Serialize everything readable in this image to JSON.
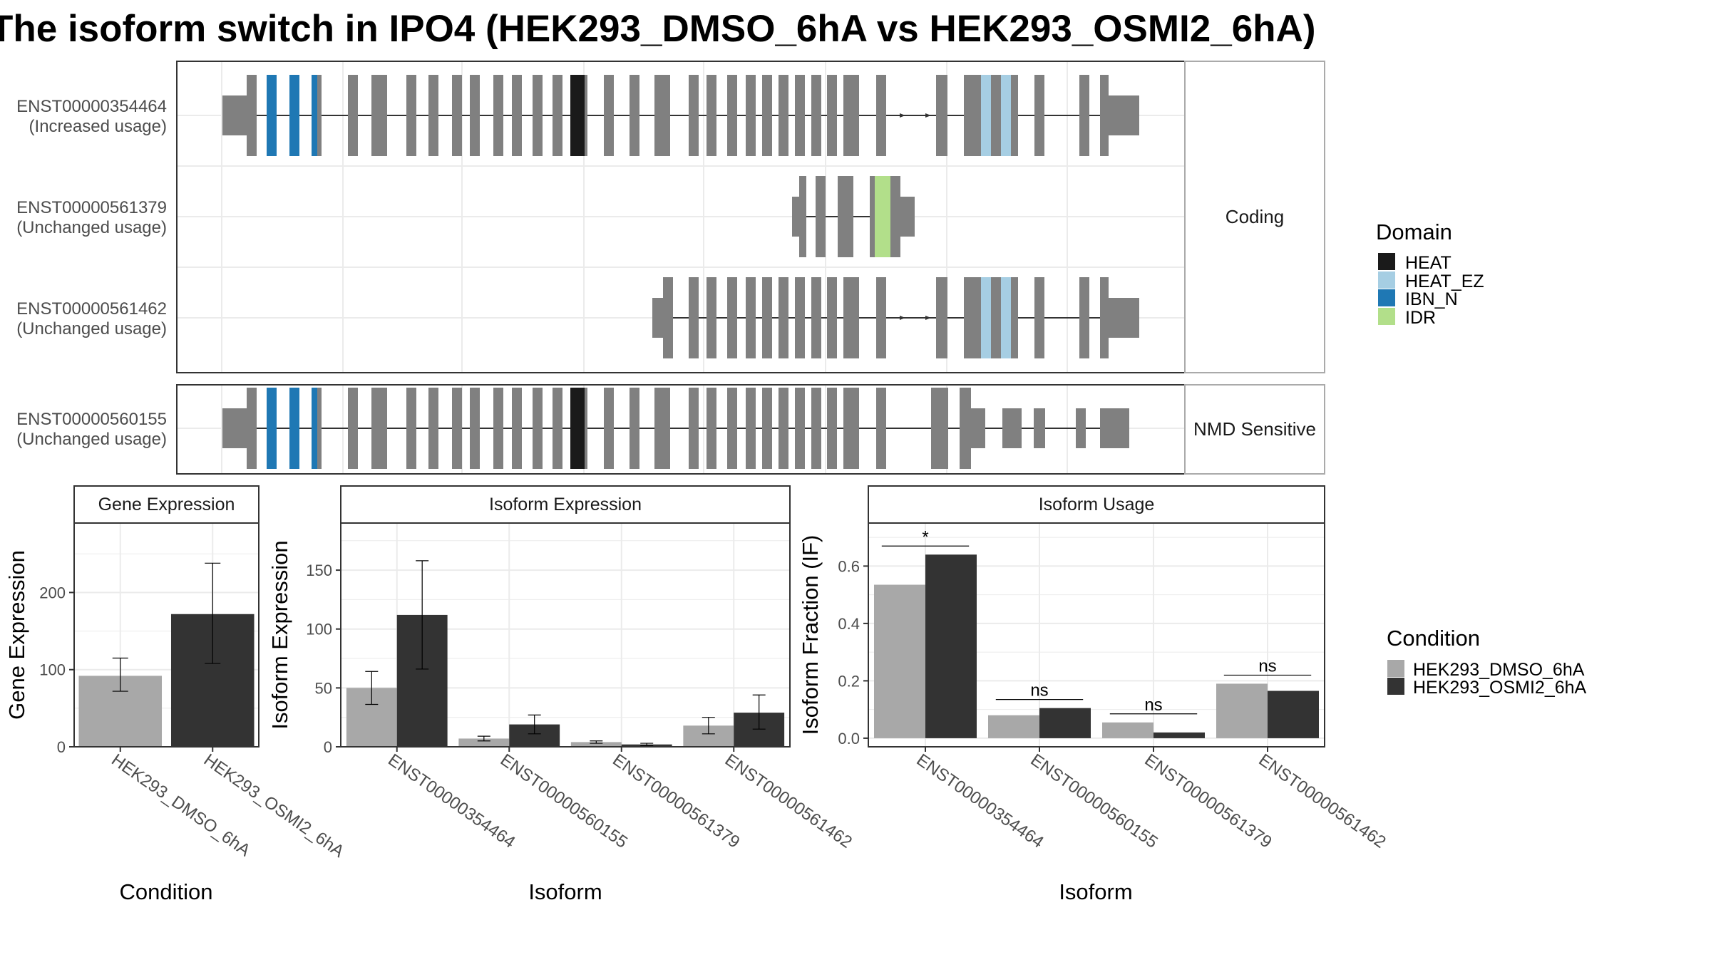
{
  "title": "The isoform switch in IPO4 (HEK293_DMSO_6hA vs HEK293_OSMI2_6hA)",
  "colors": {
    "exon": "#808080",
    "frame": "#333333",
    "strip_bg": "#ffffff",
    "strip_border": "#aaaaaa",
    "grid": "#ebebeb",
    "cond1": "#a8a8a8",
    "cond2": "#333333"
  },
  "structure": {
    "facets": [
      {
        "label": "Coding",
        "transcripts": [
          {
            "id": "ENST00000354464",
            "usage": "(Increased usage)"
          },
          {
            "id": "ENST00000561379",
            "usage": "(Unchanged usage)"
          },
          {
            "id": "ENST00000561462",
            "usage": "(Unchanged usage)"
          }
        ]
      },
      {
        "label": "NMD Sensitive",
        "transcripts": [
          {
            "id": "ENST00000560155",
            "usage": "(Unchanged usage)"
          }
        ]
      }
    ],
    "legend": {
      "title": "Domain",
      "items": [
        {
          "name": "HEAT",
          "color": "#1a1a1a"
        },
        {
          "name": "HEAT_EZ",
          "color": "#a6cee3"
        },
        {
          "name": "IBN_N",
          "color": "#1f78b4"
        },
        {
          "name": "IDR",
          "color": "#b2df8a"
        }
      ]
    }
  },
  "condition_legend": {
    "title": "Condition",
    "items": [
      {
        "name": "HEK293_DMSO_6hA",
        "color": "#a8a8a8"
      },
      {
        "name": "HEK293_OSMI2_6hA",
        "color": "#333333"
      }
    ]
  },
  "chart_data": [
    {
      "type": "bar",
      "title": "Gene Expression",
      "xlabel": "Condition",
      "ylabel": "Gene Expression",
      "categories": [
        "HEK293_DMSO_6hA",
        "HEK293_OSMI2_6hA"
      ],
      "values": [
        92,
        172
      ],
      "error_low": [
        72,
        108
      ],
      "error_high": [
        115,
        238
      ],
      "ylim": [
        0,
        290
      ],
      "yticks": [
        0,
        100,
        200
      ]
    },
    {
      "type": "bar",
      "title": "Isoform Expression",
      "xlabel": "Isoform",
      "ylabel": "Isoform Expression",
      "categories": [
        "ENST00000354464",
        "ENST00000560155",
        "ENST00000561379",
        "ENST00000561462"
      ],
      "series": [
        {
          "name": "HEK293_DMSO_6hA",
          "values": [
            50,
            7,
            4,
            18
          ],
          "error_low": [
            36,
            5,
            3,
            11
          ],
          "error_high": [
            64,
            9,
            5,
            25
          ]
        },
        {
          "name": "HEK293_OSMI2_6hA",
          "values": [
            112,
            19,
            2,
            29
          ],
          "error_low": [
            66,
            11,
            1,
            15
          ],
          "error_high": [
            158,
            27,
            3,
            44
          ]
        }
      ],
      "ylim": [
        0,
        190
      ],
      "yticks": [
        0,
        50,
        100,
        150
      ]
    },
    {
      "type": "bar",
      "title": "Isoform Usage",
      "xlabel": "Isoform",
      "ylabel": "Isoform Fraction (IF)",
      "categories": [
        "ENST00000354464",
        "ENST00000560155",
        "ENST00000561379",
        "ENST00000561462"
      ],
      "series": [
        {
          "name": "HEK293_DMSO_6hA",
          "values": [
            0.535,
            0.08,
            0.055,
            0.19
          ]
        },
        {
          "name": "HEK293_OSMI2_6hA",
          "values": [
            0.64,
            0.105,
            0.02,
            0.165
          ]
        }
      ],
      "significance": [
        "*",
        "ns",
        "ns",
        "ns"
      ],
      "ylim": [
        -0.03,
        0.75
      ],
      "yticks": [
        0.0,
        0.2,
        0.4,
        0.6
      ],
      "ytick_labels": [
        "0.0",
        "0.2",
        "0.4",
        "0.6"
      ]
    }
  ]
}
